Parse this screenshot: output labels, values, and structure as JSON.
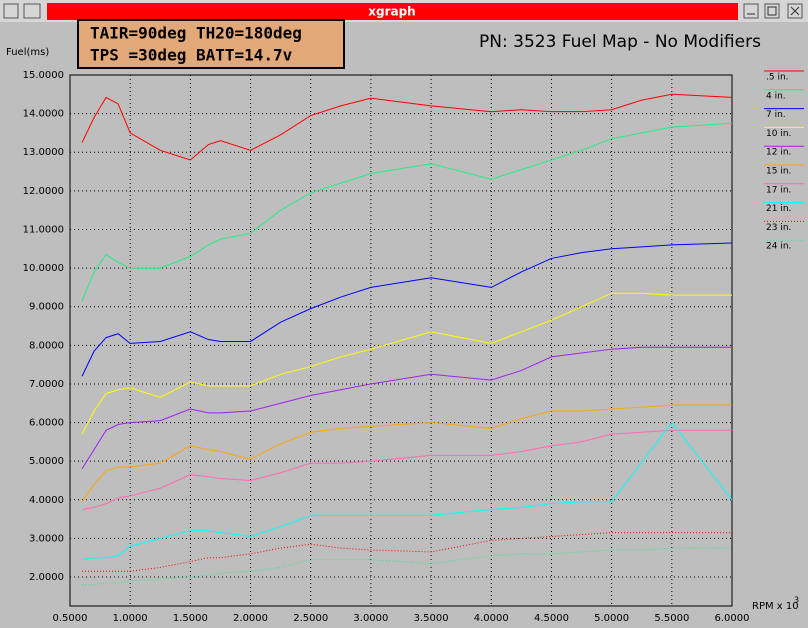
{
  "window": {
    "title": "xgraph"
  },
  "chart_data": {
    "type": "line",
    "title": "PN: 3523 Fuel Map - No Modifiers",
    "annotations": [
      "TAIR=90deg TH20=180deg",
      "TPS =30deg BATT=14.7v"
    ],
    "y_label": "Fuel(ms)",
    "x_label": "RPM x 10",
    "x_label_exp": "3",
    "grid": true,
    "legend": "right",
    "xlim": [
      0.5,
      6.0
    ],
    "ylim": [
      1.25,
      15.0
    ],
    "xticks": [
      {
        "value": 0.5,
        "label": "0.5000"
      },
      {
        "value": 1.0,
        "label": "1.0000"
      },
      {
        "value": 1.5,
        "label": "1.5000"
      },
      {
        "value": 2.0,
        "label": "2.0000"
      },
      {
        "value": 2.5,
        "label": "2.5000"
      },
      {
        "value": 3.0,
        "label": "3.0000"
      },
      {
        "value": 3.5,
        "label": "3.5000"
      },
      {
        "value": 4.0,
        "label": "4.0000"
      },
      {
        "value": 4.5,
        "label": "4.5000"
      },
      {
        "value": 5.0,
        "label": "5.0000"
      },
      {
        "value": 5.5,
        "label": "5.5000"
      },
      {
        "value": 6.0,
        "label": "6.0000"
      }
    ],
    "yticks": [
      {
        "value": 2,
        "label": "2.0000"
      },
      {
        "value": 3,
        "label": "3.0000"
      },
      {
        "value": 4,
        "label": "4.0000"
      },
      {
        "value": 5,
        "label": "5.0000"
      },
      {
        "value": 6,
        "label": "6.0000"
      },
      {
        "value": 7,
        "label": "7.0000"
      },
      {
        "value": 8,
        "label": "8.0000"
      },
      {
        "value": 9,
        "label": "9.0000"
      },
      {
        "value": 10,
        "label": "10.0000"
      },
      {
        "value": 11,
        "label": "11.0000"
      },
      {
        "value": 12,
        "label": "12.0000"
      },
      {
        "value": 13,
        "label": "13.0000"
      },
      {
        "value": 14,
        "label": "14.0000"
      },
      {
        "value": 15,
        "label": "15.0000"
      }
    ],
    "x": [
      0.6,
      0.7,
      0.8,
      0.9,
      1.0,
      1.25,
      1.5,
      1.65,
      1.75,
      2.0,
      2.25,
      2.5,
      2.75,
      3.0,
      3.5,
      4.0,
      4.25,
      4.5,
      4.75,
      5.0,
      5.25,
      5.5,
      6.0
    ],
    "series": [
      {
        "name": ".5 in.",
        "color": "#ff0000",
        "dotted": false,
        "values": [
          13.25,
          13.9,
          14.42,
          14.25,
          13.5,
          13.05,
          12.8,
          13.2,
          13.3,
          13.05,
          13.45,
          13.95,
          14.2,
          14.4,
          14.2,
          14.05,
          14.1,
          14.05,
          14.05,
          14.1,
          14.35,
          14.5,
          14.42
        ]
      },
      {
        "name": "4 in.",
        "color": "#22ee88",
        "dotted": false,
        "values": [
          9.15,
          9.9,
          10.35,
          10.15,
          10.0,
          10.0,
          10.3,
          10.6,
          10.75,
          10.9,
          11.5,
          11.95,
          12.2,
          12.45,
          12.7,
          12.3,
          12.55,
          12.8,
          13.05,
          13.35,
          13.5,
          13.65,
          13.75
        ]
      },
      {
        "name": "7 in.",
        "color": "#0000ff",
        "dotted": false,
        "values": [
          7.2,
          7.85,
          8.2,
          8.3,
          8.05,
          8.1,
          8.35,
          8.15,
          8.1,
          8.1,
          8.6,
          8.95,
          9.25,
          9.5,
          9.75,
          9.5,
          9.9,
          10.25,
          10.4,
          10.5,
          10.55,
          10.6,
          10.65
        ]
      },
      {
        "name": "10 in.",
        "color": "#ffff00",
        "dotted": false,
        "values": [
          5.7,
          6.3,
          6.75,
          6.85,
          6.9,
          6.65,
          7.05,
          6.95,
          6.95,
          6.95,
          7.25,
          7.45,
          7.7,
          7.9,
          8.35,
          8.05,
          8.35,
          8.65,
          9.0,
          9.35,
          9.35,
          9.3,
          9.3
        ]
      },
      {
        "name": "12 in.",
        "color": "#a020f0",
        "dotted": false,
        "values": [
          4.8,
          5.3,
          5.8,
          5.95,
          6.0,
          6.05,
          6.35,
          6.25,
          6.25,
          6.3,
          6.5,
          6.7,
          6.85,
          7.0,
          7.25,
          7.1,
          7.35,
          7.7,
          7.8,
          7.9,
          7.95,
          7.95,
          7.95
        ]
      },
      {
        "name": "15 in.",
        "color": "#ffa500",
        "dotted": false,
        "values": [
          3.95,
          4.4,
          4.75,
          4.85,
          4.85,
          4.95,
          5.4,
          5.3,
          5.25,
          5.05,
          5.45,
          5.75,
          5.85,
          5.9,
          6.0,
          5.85,
          6.1,
          6.3,
          6.3,
          6.35,
          6.4,
          6.45,
          6.45
        ]
      },
      {
        "name": "17 in.",
        "color": "#ff69b4",
        "dotted": false,
        "values": [
          3.75,
          3.8,
          3.9,
          4.05,
          4.1,
          4.3,
          4.65,
          4.6,
          4.55,
          4.5,
          4.7,
          4.95,
          4.95,
          5.0,
          5.15,
          5.15,
          5.25,
          5.4,
          5.5,
          5.7,
          5.75,
          5.8,
          5.8
        ]
      },
      {
        "name": "21 in.",
        "color": "#00ffff",
        "dotted": false,
        "values": [
          2.45,
          2.5,
          2.5,
          2.55,
          2.8,
          3.0,
          3.2,
          3.2,
          3.15,
          3.05,
          3.3,
          3.6,
          3.6,
          3.6,
          3.6,
          3.75,
          3.8,
          3.9,
          3.95,
          3.95,
          4.97,
          6.0,
          4.0
        ]
      },
      {
        "name": "23 in.",
        "color": "#ff0000",
        "dotted": true,
        "values": [
          2.15,
          2.15,
          2.15,
          2.15,
          2.15,
          2.25,
          2.4,
          2.5,
          2.5,
          2.6,
          2.75,
          2.85,
          2.75,
          2.7,
          2.65,
          2.95,
          3.0,
          3.05,
          3.1,
          3.15,
          3.15,
          3.15,
          3.15
        ]
      },
      {
        "name": "24 in.",
        "color": "#22ee88",
        "dotted": true,
        "values": [
          1.8,
          1.8,
          1.85,
          1.85,
          1.9,
          1.95,
          2.0,
          2.05,
          2.1,
          2.15,
          2.25,
          2.45,
          2.45,
          2.45,
          2.35,
          2.55,
          2.6,
          2.6,
          2.65,
          2.7,
          2.7,
          2.75,
          2.75
        ]
      }
    ]
  }
}
